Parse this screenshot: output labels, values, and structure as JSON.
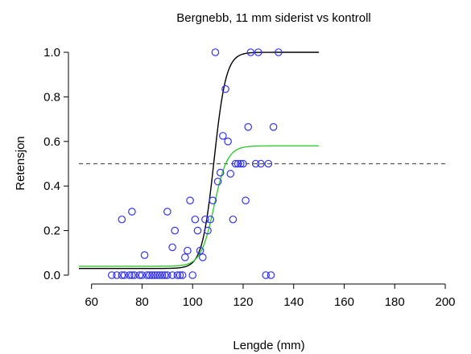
{
  "chart_data": {
    "type": "scatter",
    "title": "Bergnebb, 11 mm siderist vs kontroll",
    "xlabel": "Lengde (mm)",
    "ylabel": "Retensjon",
    "xlim": [
      55,
      200
    ],
    "ylim": [
      0,
      1
    ],
    "x_ticks": [
      60,
      80,
      100,
      120,
      140,
      160,
      180,
      200
    ],
    "y_ticks": [
      0.0,
      0.2,
      0.4,
      0.6,
      0.8,
      1.0
    ],
    "x_tick_labels": [
      "60",
      "80",
      "100",
      "120",
      "140",
      "160",
      "180",
      "200"
    ],
    "y_tick_labels": [
      "0.0",
      "0.2",
      "0.4",
      "0.6",
      "0.8",
      "1.0"
    ],
    "grid": false,
    "points": [
      {
        "x": 68,
        "y": 0
      },
      {
        "x": 70,
        "y": 0
      },
      {
        "x": 72,
        "y": 0
      },
      {
        "x": 73,
        "y": 0
      },
      {
        "x": 75,
        "y": 0
      },
      {
        "x": 76,
        "y": 0
      },
      {
        "x": 77,
        "y": 0
      },
      {
        "x": 79,
        "y": 0
      },
      {
        "x": 80,
        "y": 0
      },
      {
        "x": 82,
        "y": 0
      },
      {
        "x": 83,
        "y": 0
      },
      {
        "x": 84,
        "y": 0
      },
      {
        "x": 85,
        "y": 0
      },
      {
        "x": 86,
        "y": 0
      },
      {
        "x": 87,
        "y": 0
      },
      {
        "x": 88,
        "y": 0
      },
      {
        "x": 89,
        "y": 0
      },
      {
        "x": 90,
        "y": 0
      },
      {
        "x": 92,
        "y": 0
      },
      {
        "x": 94,
        "y": 0
      },
      {
        "x": 95,
        "y": 0
      },
      {
        "x": 96,
        "y": 0
      },
      {
        "x": 100,
        "y": 0
      },
      {
        "x": 129,
        "y": 0
      },
      {
        "x": 131,
        "y": 0
      },
      {
        "x": 72,
        "y": 0.25
      },
      {
        "x": 76,
        "y": 0.285
      },
      {
        "x": 81,
        "y": 0.09
      },
      {
        "x": 90,
        "y": 0.285
      },
      {
        "x": 92,
        "y": 0.125
      },
      {
        "x": 93,
        "y": 0.2
      },
      {
        "x": 97,
        "y": 0.08
      },
      {
        "x": 98,
        "y": 0.11
      },
      {
        "x": 99,
        "y": 0.335
      },
      {
        "x": 101,
        "y": 0.25
      },
      {
        "x": 102,
        "y": 0.2
      },
      {
        "x": 103,
        "y": 0.11
      },
      {
        "x": 104,
        "y": 0.08
      },
      {
        "x": 105,
        "y": 0.25
      },
      {
        "x": 106,
        "y": 0.2
      },
      {
        "x": 107,
        "y": 0.25
      },
      {
        "x": 108,
        "y": 0.335
      },
      {
        "x": 109,
        "y": 1.0
      },
      {
        "x": 110,
        "y": 0.42
      },
      {
        "x": 111,
        "y": 0.46
      },
      {
        "x": 112,
        "y": 0.625
      },
      {
        "x": 113,
        "y": 0.835
      },
      {
        "x": 114,
        "y": 0.6
      },
      {
        "x": 115,
        "y": 0.455
      },
      {
        "x": 116,
        "y": 0.25
      },
      {
        "x": 117,
        "y": 0.5
      },
      {
        "x": 118,
        "y": 0.5
      },
      {
        "x": 119,
        "y": 0.5
      },
      {
        "x": 120,
        "y": 0.5
      },
      {
        "x": 121,
        "y": 0.335
      },
      {
        "x": 122,
        "y": 0.665
      },
      {
        "x": 123,
        "y": 1.0
      },
      {
        "x": 125,
        "y": 0.5
      },
      {
        "x": 126,
        "y": 1.0
      },
      {
        "x": 127,
        "y": 0.5
      },
      {
        "x": 130,
        "y": 0.5
      },
      {
        "x": 132,
        "y": 0.665
      },
      {
        "x": 134,
        "y": 1.0
      }
    ],
    "curves": [
      {
        "color": "#000000",
        "lower": 0.03,
        "upper": 1.0,
        "midpoint": 108.5,
        "slope": 0.42,
        "x_range": [
          55,
          150
        ]
      },
      {
        "color": "#33cc33",
        "lower": 0.04,
        "upper": 0.58,
        "midpoint": 108.5,
        "slope": 0.38,
        "x_range": [
          55,
          150
        ]
      }
    ],
    "reference_line": {
      "y": 0.5,
      "x_range": [
        55,
        200
      ],
      "style": "dashed",
      "color": "#555555"
    },
    "point_color": "#3333ee"
  }
}
